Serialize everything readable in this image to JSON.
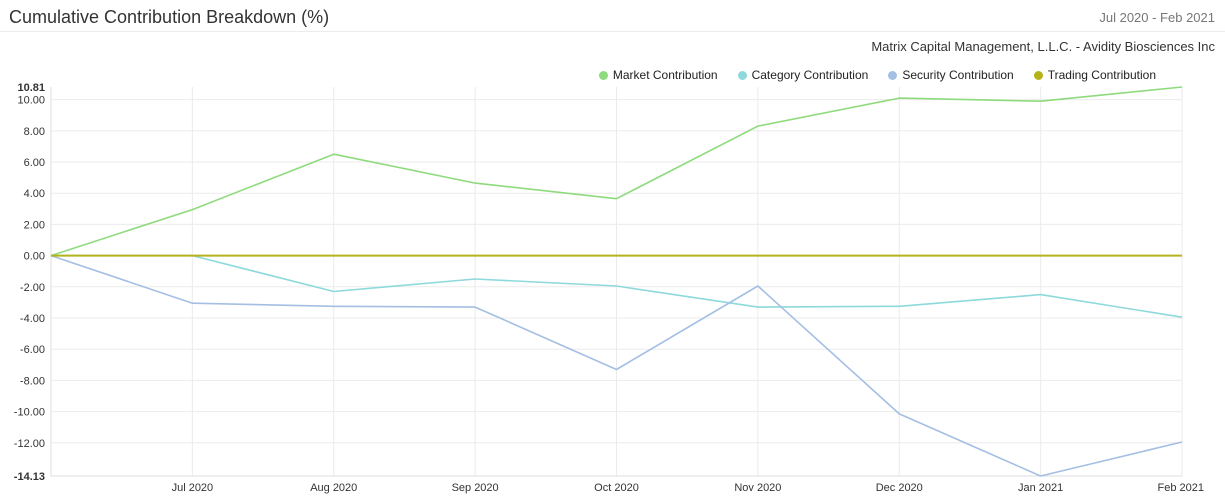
{
  "header": {
    "title": "Cumulative Contribution Breakdown (%)",
    "period": "Jul 2020 - Feb 2021",
    "subtitle": "Matrix Capital Management, L.L.C. - Avidity Biosciences Inc"
  },
  "chart_data": {
    "type": "line",
    "title": "Cumulative Contribution Breakdown (%)",
    "subtitle": "Matrix Capital Management, L.L.C. - Avidity Biosciences Inc",
    "xlabel": "",
    "ylabel": "",
    "categories": [
      "",
      "Jul 2020",
      "Aug 2020",
      "Sep 2020",
      "Oct 2020",
      "Nov 2020",
      "Dec 2020",
      "Jan 2021",
      "Feb 2021"
    ],
    "ylim": [
      -14.13,
      10.81
    ],
    "yticks": [
      -12,
      -10,
      -8,
      -6,
      -4,
      -2,
      0,
      2,
      4,
      6,
      8,
      10
    ],
    "ytick_labels": [
      "-12.00",
      "-10.00",
      "-8.00",
      "-6.00",
      "-4.00",
      "-2.00",
      "0.00",
      "2.00",
      "4.00",
      "6.00",
      "8.00",
      "10.00"
    ],
    "ymin_label": "-14.13",
    "ymax_label": "10.81",
    "grid": true,
    "legend_position": "top-right",
    "series": [
      {
        "name": "Market Contribution",
        "color": "#8edb7d",
        "values": [
          0,
          2.95,
          6.5,
          4.65,
          3.65,
          8.3,
          10.1,
          9.9,
          10.81
        ]
      },
      {
        "name": "Category Contribution",
        "color": "#8dd9dc",
        "values": [
          0,
          0,
          -2.3,
          -1.5,
          -1.95,
          -3.3,
          -3.25,
          -2.5,
          -3.95
        ]
      },
      {
        "name": "Security Contribution",
        "color": "#a4bfe3",
        "values": [
          0,
          -3.05,
          -3.25,
          -3.3,
          -7.3,
          -1.95,
          -10.15,
          -14.13,
          -11.95
        ]
      },
      {
        "name": "Trading Contribution",
        "color": "#b5b31c",
        "values": [
          0,
          0,
          0,
          0,
          0,
          0,
          0,
          0,
          0
        ]
      }
    ]
  }
}
